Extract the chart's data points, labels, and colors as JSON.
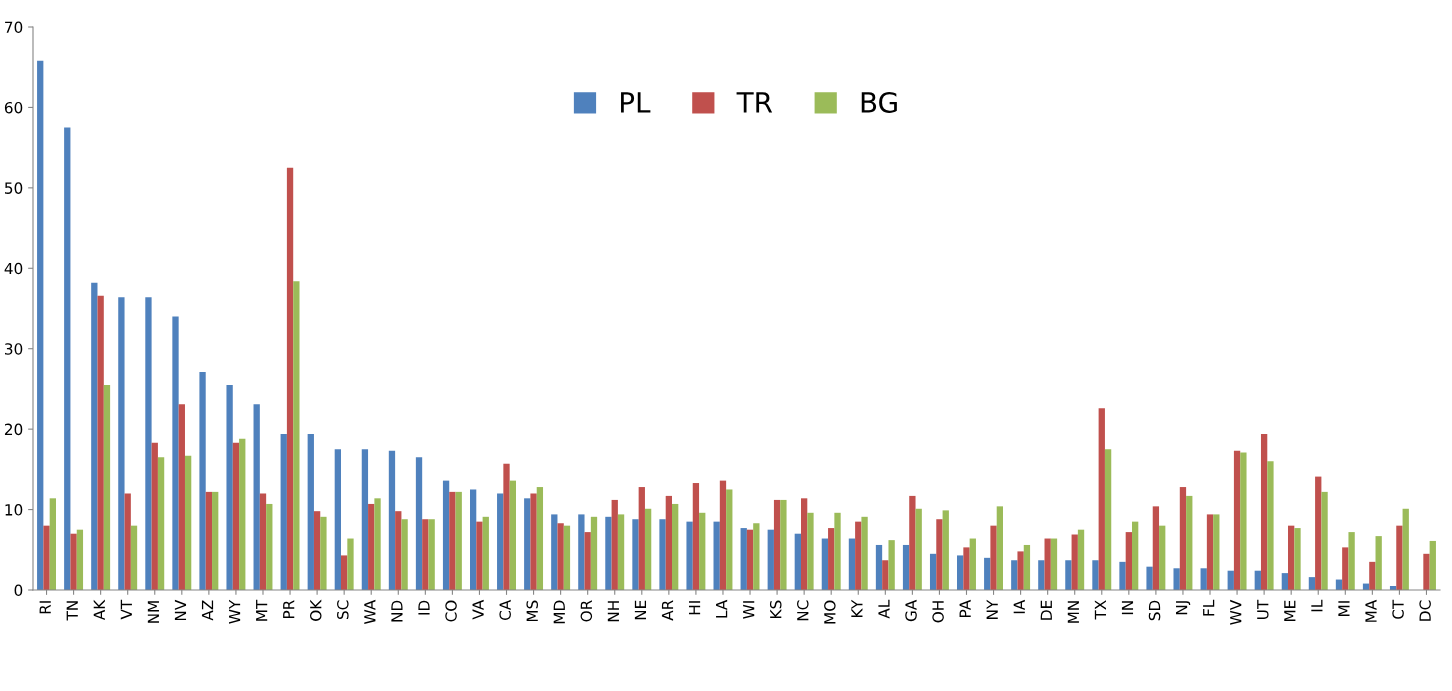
{
  "chart_data": {
    "type": "bar",
    "categories": [
      "RI",
      "TN",
      "AK",
      "VT",
      "NM",
      "NV",
      "AZ",
      "WY",
      "MT",
      "PR",
      "OK",
      "SC",
      "WA",
      "ND",
      "ID",
      "CO",
      "VA",
      "CA",
      "MS",
      "MD",
      "OR",
      "NH",
      "NE",
      "AR",
      "HI",
      "LA",
      "WI",
      "KS",
      "NC",
      "MO",
      "KY",
      "AL",
      "GA",
      "OH",
      "PA",
      "NY",
      "IA",
      "DE",
      "MN",
      "TX",
      "IN",
      "SD",
      "NJ",
      "FL",
      "WV",
      "UT",
      "ME",
      "IL",
      "MI",
      "MA",
      "CT",
      "DC"
    ],
    "series": [
      {
        "name": "PL",
        "color": "#4f81bd",
        "values": [
          65.8,
          57.5,
          38.2,
          36.4,
          36.4,
          34,
          27.1,
          25.5,
          23.1,
          19.4,
          19.4,
          17.5,
          17.5,
          17.3,
          16.5,
          13.6,
          12.5,
          12,
          11.4,
          9.4,
          9.4,
          9.1,
          8.8,
          8.8,
          8.5,
          8.5,
          7.7,
          7.5,
          7.0,
          6.4,
          6.4,
          5.6,
          5.6,
          4.5,
          4.3,
          4.0,
          3.7,
          3.7,
          3.7,
          3.7,
          3.5,
          2.9,
          2.7,
          2.7,
          2.4,
          2.4,
          2.1,
          1.6,
          1.3,
          0.8,
          0.5,
          null
        ]
      },
      {
        "name": "TR",
        "color": "#c0504d",
        "values": [
          8,
          7,
          36.6,
          12,
          18.3,
          23.1,
          12.2,
          18.3,
          12,
          52.5,
          9.8,
          4.3,
          10.7,
          9.8,
          8.8,
          12.2,
          8.5,
          15.7,
          12,
          8.3,
          7.2,
          11.2,
          12.8,
          11.7,
          13.3,
          13.6,
          7.5,
          11.2,
          11.4,
          7.7,
          8.5,
          3.7,
          11.7,
          8.8,
          5.3,
          8.0,
          4.8,
          6.4,
          6.9,
          22.6,
          7.2,
          10.4,
          12.8,
          9.4,
          17.3,
          19.4,
          8.0,
          14.1,
          5.3,
          3.5,
          8.0,
          4.5
        ]
      },
      {
        "name": "BG",
        "color": "#9bbb59",
        "values": [
          11.4,
          7.5,
          25.5,
          8,
          16.5,
          16.7,
          12.2,
          18.8,
          10.7,
          38.4,
          9.1,
          6.4,
          11.4,
          8.8,
          8.8,
          12.2,
          9.1,
          13.6,
          12.8,
          8.0,
          9.1,
          9.4,
          10.1,
          10.7,
          9.6,
          12.5,
          8.3,
          11.2,
          9.6,
          9.6,
          9.1,
          6.2,
          10.1,
          9.9,
          6.4,
          10.4,
          5.6,
          6.4,
          7.5,
          17.5,
          8.5,
          8.0,
          11.7,
          9.4,
          17.1,
          16.0,
          7.7,
          12.2,
          7.2,
          6.7,
          10.1,
          6.1
        ]
      }
    ],
    "ylim": [
      0,
      70
    ],
    "yticks": [
      0,
      10,
      20,
      30,
      40,
      50,
      60,
      70
    ],
    "grid": false,
    "legend": "top"
  }
}
